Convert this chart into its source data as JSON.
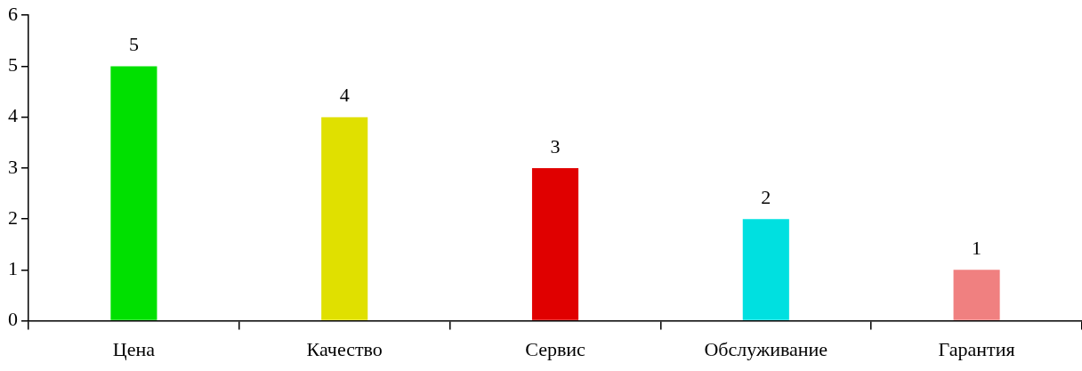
{
  "chart_data": {
    "type": "bar",
    "categories": [
      "Цена",
      "Качество",
      "Сервис",
      "Обслуживание",
      "Гарантия"
    ],
    "values": [
      5,
      4,
      3,
      2,
      1
    ],
    "colors": [
      "#00e000",
      "#e0e000",
      "#e00000",
      "#00e0e0",
      "#f08080"
    ],
    "ylim": [
      0,
      6
    ],
    "yticks": [
      0,
      1,
      2,
      3,
      4,
      5,
      6
    ],
    "grid": false,
    "legend": false,
    "data_labels": true
  }
}
